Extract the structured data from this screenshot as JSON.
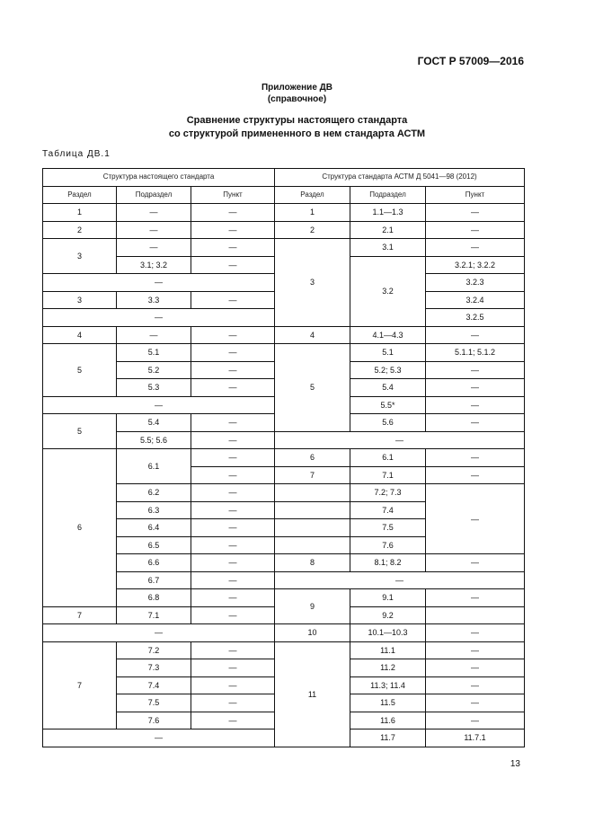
{
  "header": {
    "standard": "ГОСТ Р 57009—2016"
  },
  "appendix": {
    "title": "Приложение ДВ",
    "subtitle": "(справочное)"
  },
  "title": {
    "line1": "Сравнение структуры настоящего стандарта",
    "line2": "со структурой примененного в нем стандарта АСТМ"
  },
  "table_label": "Таблица ДВ.1",
  "table": {
    "group_headers": [
      "Структура настоящего стандарта",
      "Структура стандарта АСТМ Д 5041—98 (2012)"
    ],
    "columns": [
      "Раздел",
      "Подраздел",
      "Пункт",
      "Раздел",
      "Подраздел",
      "Пункт"
    ],
    "rows": [
      [
        {
          "t": "1"
        },
        {
          "t": "—"
        },
        {
          "t": "—"
        },
        {
          "t": "1"
        },
        {
          "t": "1.1—1.3"
        },
        {
          "t": "—"
        }
      ],
      [
        {
          "t": "2"
        },
        {
          "t": "—"
        },
        {
          "t": "—"
        },
        {
          "t": "2"
        },
        {
          "t": "2.1"
        },
        {
          "t": "—"
        }
      ],
      [
        {
          "t": "3",
          "rs": 2
        },
        {
          "t": "—"
        },
        {
          "t": "—"
        },
        {
          "t": "3",
          "rs": 5
        },
        {
          "t": "3.1"
        },
        {
          "t": "—"
        }
      ],
      [
        {
          "t": "3.1; 3.2"
        },
        {
          "t": "—"
        },
        {
          "t": "3.2",
          "rs": 4
        },
        {
          "t": "3.2.1; 3.2.2"
        }
      ],
      [
        {
          "t": "—",
          "cs": 3
        },
        {
          "t": "3.2.3"
        }
      ],
      [
        {
          "t": "3"
        },
        {
          "t": "3.3"
        },
        {
          "t": "—"
        },
        {
          "t": "3.2.4"
        }
      ],
      [
        {
          "t": "—",
          "cs": 3
        },
        {
          "t": "3.2.5"
        }
      ],
      [
        {
          "t": "4"
        },
        {
          "t": "—"
        },
        {
          "t": "—"
        },
        {
          "t": "4"
        },
        {
          "t": "4.1—4.3"
        },
        {
          "t": "—"
        }
      ],
      [
        {
          "t": "5",
          "rs": 3
        },
        {
          "t": "5.1"
        },
        {
          "t": "—"
        },
        {
          "t": "5",
          "rs": 5
        },
        {
          "t": "5.1"
        },
        {
          "t": "5.1.1; 5.1.2"
        }
      ],
      [
        {
          "t": "5.2"
        },
        {
          "t": "—"
        },
        {
          "t": "5.2; 5.3"
        },
        {
          "t": "—"
        }
      ],
      [
        {
          "t": "5.3"
        },
        {
          "t": "—"
        },
        {
          "t": "5.4"
        },
        {
          "t": "—"
        }
      ],
      [
        {
          "t": "—",
          "cs": 3
        },
        {
          "t": "5.5*"
        },
        {
          "t": "—"
        }
      ],
      [
        {
          "t": "5",
          "rs": 2
        },
        {
          "t": "5.4"
        },
        {
          "t": "—"
        },
        {
          "t": "5.6"
        },
        {
          "t": "—"
        }
      ],
      [
        {
          "t": "5.5; 5.6"
        },
        {
          "t": "—"
        },
        {
          "t": "—",
          "cs": 3
        }
      ],
      [
        {
          "t": "6",
          "rs": 9
        },
        {
          "t": "6.1",
          "rs": 2
        },
        {
          "t": "—"
        },
        {
          "t": "6"
        },
        {
          "t": "6.1"
        },
        {
          "t": "—"
        }
      ],
      [
        {
          "t": "—"
        },
        {
          "t": "7"
        },
        {
          "t": "7.1"
        },
        {
          "t": "—"
        }
      ],
      [
        {
          "t": "6.2"
        },
        {
          "t": "—"
        },
        {
          "t": ""
        },
        {
          "t": "7.2; 7.3"
        },
        {
          "t": "—",
          "rs": 4
        }
      ],
      [
        {
          "t": "6.3"
        },
        {
          "t": "—"
        },
        {
          "t": ""
        },
        {
          "t": "7.4"
        }
      ],
      [
        {
          "t": "6.4"
        },
        {
          "t": "—"
        },
        {
          "t": ""
        },
        {
          "t": "7.5"
        }
      ],
      [
        {
          "t": "6.5"
        },
        {
          "t": "—"
        },
        {
          "t": ""
        },
        {
          "t": "7.6"
        }
      ],
      [
        {
          "t": "6.6"
        },
        {
          "t": "—"
        },
        {
          "t": "8"
        },
        {
          "t": "8.1; 8.2"
        },
        {
          "t": "—"
        }
      ],
      [
        {
          "t": "6.7"
        },
        {
          "t": "—"
        },
        {
          "t": "—",
          "cs": 3
        }
      ],
      [
        {
          "t": "6.8"
        },
        {
          "t": "—"
        },
        {
          "t": "9",
          "rs": 2
        },
        {
          "t": "9.1"
        },
        {
          "t": "—"
        }
      ],
      [
        {
          "t": "7"
        },
        {
          "t": "7.1"
        },
        {
          "t": "—"
        },
        {
          "t": "9.2"
        },
        {
          "t": ""
        }
      ],
      [
        {
          "t": "—",
          "cs": 3
        },
        {
          "t": "10"
        },
        {
          "t": "10.1—10.3"
        },
        {
          "t": "—"
        }
      ],
      [
        {
          "t": "7",
          "rs": 5
        },
        {
          "t": "7.2"
        },
        {
          "t": "—"
        },
        {
          "t": "11",
          "rs": 6
        },
        {
          "t": "11.1"
        },
        {
          "t": "—"
        }
      ],
      [
        {
          "t": "7.3"
        },
        {
          "t": "—"
        },
        {
          "t": "11.2"
        },
        {
          "t": "—"
        }
      ],
      [
        {
          "t": "7.4"
        },
        {
          "t": "—"
        },
        {
          "t": "11.3; 11.4"
        },
        {
          "t": "—"
        }
      ],
      [
        {
          "t": "7.5"
        },
        {
          "t": "—"
        },
        {
          "t": "11.5"
        },
        {
          "t": "—"
        }
      ],
      [
        {
          "t": "7.6"
        },
        {
          "t": "—"
        },
        {
          "t": "11.6"
        },
        {
          "t": "—"
        }
      ],
      [
        {
          "t": "—",
          "cs": 3
        },
        {
          "t": "11.7"
        },
        {
          "t": "11.7.1"
        }
      ]
    ]
  },
  "page_number": "13"
}
